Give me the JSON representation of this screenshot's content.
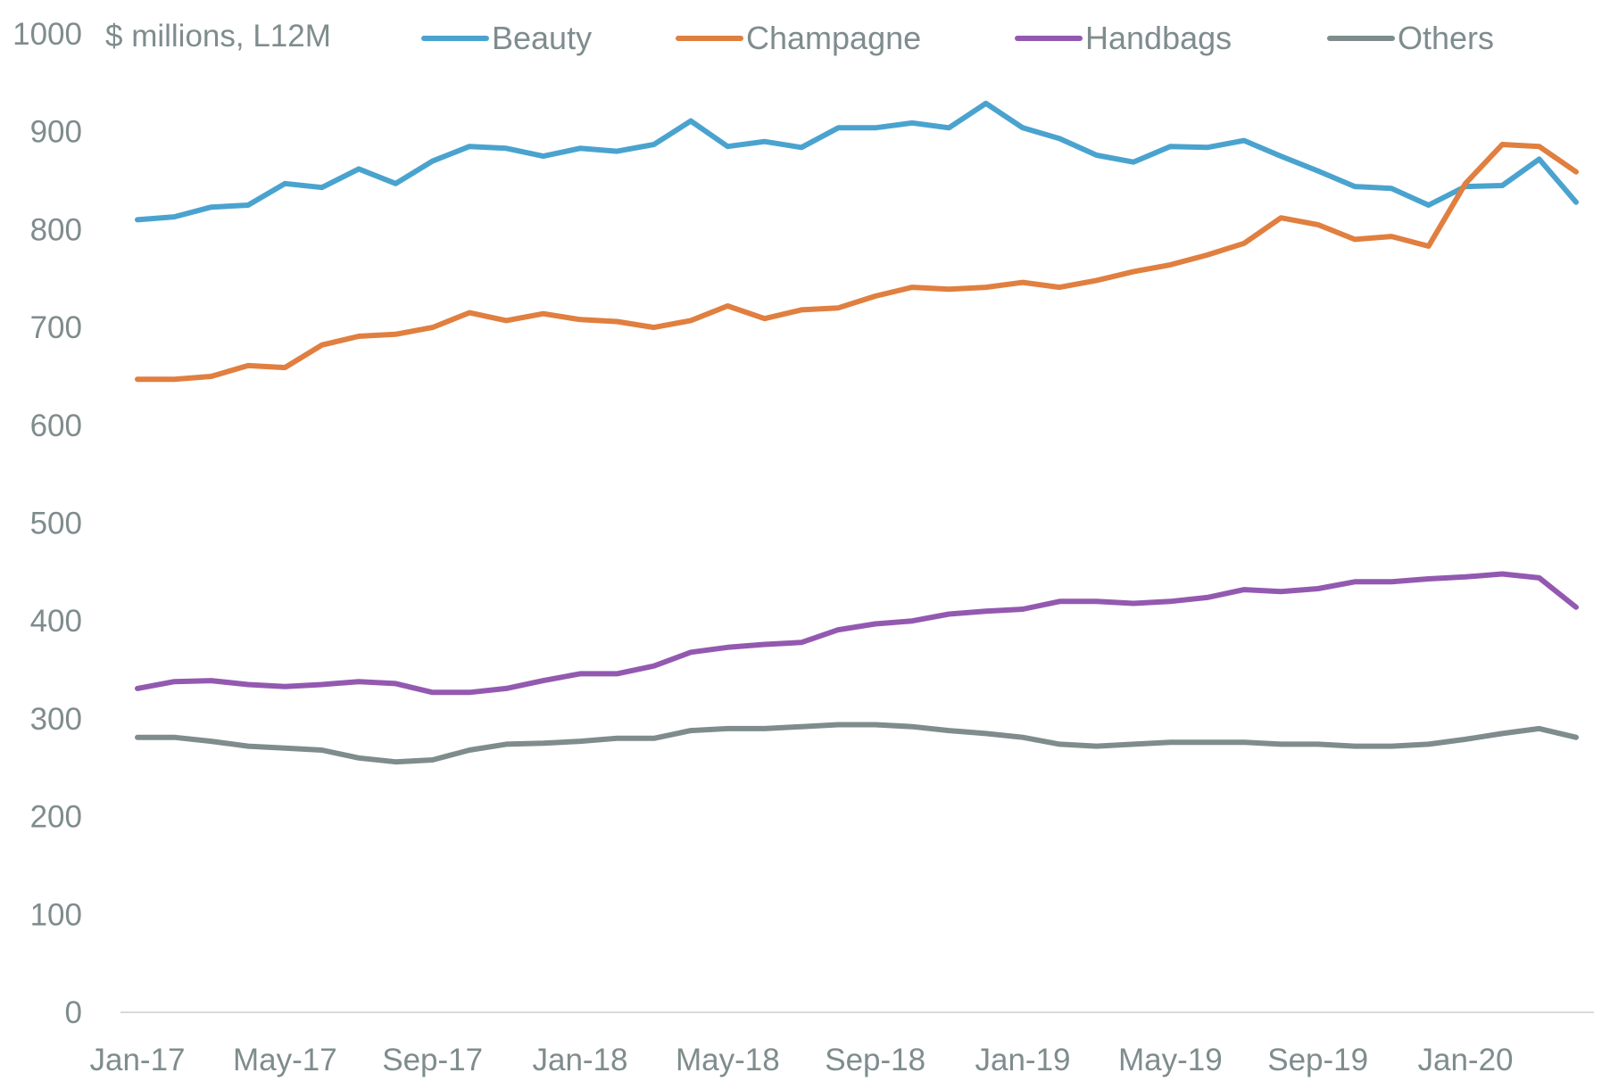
{
  "chart_data": {
    "type": "line",
    "title": "",
    "ylabel": "$ millions, L12M",
    "xlabel": "",
    "ylim": [
      0,
      1000
    ],
    "yticks": [
      0,
      100,
      200,
      300,
      400,
      500,
      600,
      700,
      800,
      900,
      1000
    ],
    "grid": false,
    "legend_position": "top",
    "x_tick_labels": [
      "Jan-17",
      "May-17",
      "Sep-17",
      "Jan-18",
      "May-18",
      "Sep-18",
      "Jan-19",
      "May-19",
      "Sep-19",
      "Jan-20"
    ],
    "x": [
      "Jan-17",
      "Feb-17",
      "Mar-17",
      "Apr-17",
      "May-17",
      "Jun-17",
      "Jul-17",
      "Aug-17",
      "Sep-17",
      "Oct-17",
      "Nov-17",
      "Dec-17",
      "Jan-18",
      "Feb-18",
      "Mar-18",
      "Apr-18",
      "May-18",
      "Jun-18",
      "Jul-18",
      "Aug-18",
      "Sep-18",
      "Oct-18",
      "Nov-18",
      "Dec-18",
      "Jan-19",
      "Feb-19",
      "Mar-19",
      "Apr-19",
      "May-19",
      "Jun-19",
      "Jul-19",
      "Aug-19",
      "Sep-19",
      "Oct-19",
      "Nov-19",
      "Dec-19",
      "Jan-20",
      "Feb-20",
      "Mar-20",
      "Apr-20"
    ],
    "series": [
      {
        "name": "Beauty",
        "color": "#4aa3cf",
        "values": [
          810,
          813,
          823,
          825,
          847,
          843,
          862,
          847,
          870,
          885,
          883,
          875,
          883,
          880,
          887,
          911,
          885,
          890,
          884,
          904,
          904,
          909,
          904,
          929,
          904,
          893,
          876,
          869,
          885,
          884,
          891,
          875,
          860,
          844,
          842,
          825,
          844,
          845,
          872,
          828
        ]
      },
      {
        "name": "Champagne",
        "color": "#e07f3f",
        "values": [
          647,
          647,
          650,
          661,
          659,
          682,
          691,
          693,
          700,
          715,
          707,
          714,
          708,
          706,
          700,
          707,
          722,
          709,
          718,
          720,
          732,
          741,
          739,
          741,
          746,
          741,
          748,
          757,
          764,
          774,
          786,
          812,
          805,
          790,
          793,
          783,
          847,
          887,
          885,
          859
        ]
      },
      {
        "name": "Handbags",
        "color": "#9359b0",
        "values": [
          331,
          338,
          339,
          335,
          333,
          335,
          338,
          336,
          327,
          327,
          331,
          339,
          346,
          346,
          354,
          368,
          373,
          376,
          378,
          391,
          397,
          400,
          407,
          410,
          412,
          420,
          420,
          418,
          420,
          424,
          432,
          430,
          433,
          440,
          440,
          443,
          445,
          448,
          444,
          414
        ]
      },
      {
        "name": "Others",
        "color": "#7f8c8d",
        "values": [
          281,
          281,
          277,
          272,
          270,
          268,
          260,
          256,
          258,
          268,
          274,
          275,
          277,
          280,
          280,
          288,
          290,
          290,
          292,
          294,
          294,
          292,
          288,
          285,
          281,
          274,
          272,
          274,
          276,
          276,
          276,
          274,
          274,
          272,
          272,
          274,
          279,
          285,
          290,
          281
        ]
      }
    ]
  }
}
